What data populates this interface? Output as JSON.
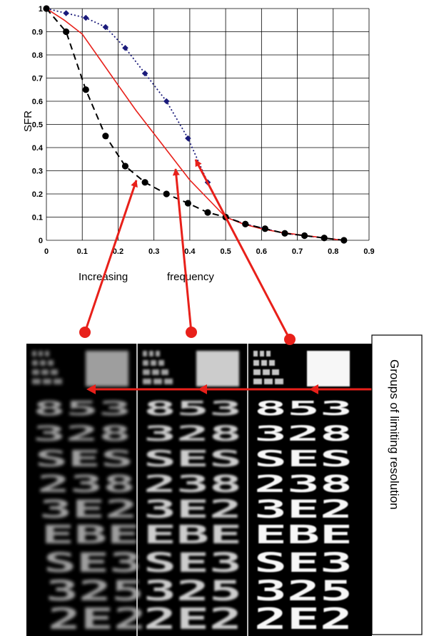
{
  "chart_data": {
    "type": "line",
    "title": "",
    "xlabel": "Increasing frequency",
    "ylabel": "SFR",
    "xlim": [
      0,
      0.9
    ],
    "ylim": [
      0,
      1
    ],
    "xticks": [
      "0",
      "0.1",
      "0.2",
      "0.3",
      "0.4",
      "0.5",
      "0.6",
      "0.7",
      "0.8",
      "0.9"
    ],
    "yticks": [
      "0",
      "0.1",
      "0.2",
      "0.3",
      "0.4",
      "0.5",
      "0.6",
      "0.7",
      "0.8",
      "0.9",
      "1"
    ],
    "grid": true,
    "legend": "none",
    "series": [
      {
        "style": "dotted",
        "marker": "diamond",
        "color": "#1a1a7a",
        "x": [
          0,
          0.055,
          0.11,
          0.165,
          0.22,
          0.275,
          0.335,
          0.395,
          0.45,
          0.5,
          0.555,
          0.61,
          0.665,
          0.72,
          0.775,
          0.83
        ],
        "y": [
          1,
          0.98,
          0.96,
          0.92,
          0.83,
          0.72,
          0.6,
          0.44,
          0.25,
          0.1,
          0.07,
          0.05,
          0.03,
          0.02,
          0.01,
          0.0
        ]
      },
      {
        "style": "solid",
        "marker": "none",
        "color": "#e8201a",
        "x": [
          0,
          0.05,
          0.1,
          0.15,
          0.2,
          0.25,
          0.3,
          0.35,
          0.4,
          0.45,
          0.5,
          0.55,
          0.6,
          0.65,
          0.7,
          0.75,
          0.8,
          0.83
        ],
        "y": [
          1,
          0.95,
          0.89,
          0.78,
          0.67,
          0.56,
          0.46,
          0.36,
          0.26,
          0.18,
          0.1,
          0.07,
          0.05,
          0.035,
          0.025,
          0.015,
          0.005,
          0.0
        ]
      },
      {
        "style": "dashed",
        "marker": "circle",
        "color": "#000000",
        "x": [
          0,
          0.055,
          0.11,
          0.165,
          0.22,
          0.275,
          0.335,
          0.395,
          0.45,
          0.5,
          0.555,
          0.61,
          0.665,
          0.72,
          0.775,
          0.83
        ],
        "y": [
          1,
          0.9,
          0.65,
          0.45,
          0.32,
          0.25,
          0.2,
          0.16,
          0.12,
          0.1,
          0.07,
          0.05,
          0.03,
          0.02,
          0.01,
          0.0
        ]
      }
    ]
  },
  "chart_labels": {
    "x_word_1": "Increasing",
    "x_word_2": "frequency"
  },
  "side_label": "Groups of limiting resolution",
  "target_panels": [
    {
      "brightness": 0.62
    },
    {
      "brightness": 0.8
    },
    {
      "brightness": 0.97
    }
  ],
  "target_rows": [
    "853",
    "328",
    "SES",
    "238",
    "3E2",
    "EBE",
    "SE3",
    "325",
    "2E2"
  ],
  "colors": {
    "arrow": "#e8201a",
    "diamond": "#1a1a7a"
  }
}
